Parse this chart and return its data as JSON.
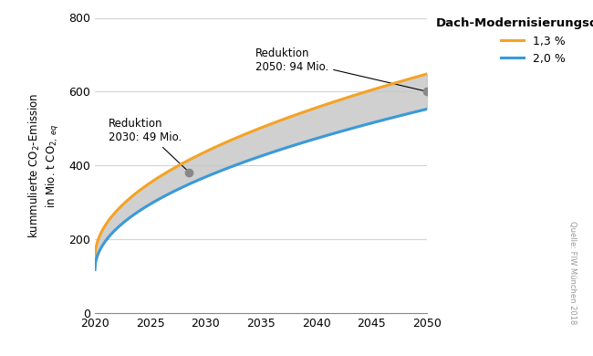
{
  "x_start": 2020,
  "x_end": 2050,
  "ylim": [
    0,
    800
  ],
  "yticks": [
    0,
    200,
    400,
    600,
    800
  ],
  "xticks": [
    2020,
    2025,
    2030,
    2035,
    2040,
    2045,
    2050
  ],
  "line_13_color": "#F5A323",
  "line_20_color": "#3A9AD9",
  "fill_color": "#C8C8C8",
  "dot_color": "#888888",
  "legend_title": "Dach-Modernisierungsquote",
  "legend_entries": [
    "1,3 %",
    "2,0 %"
  ],
  "annotation_2030_text": "Reduktion\n2030: 49 Mio.",
  "annotation_2050_text": "Reduktion\n2050: 94 Mio.",
  "source_text": "Quelle: FIW München 2018",
  "y_13_2020": 150,
  "y_13_2050": 648,
  "y_20_2020": 118,
  "y_20_2050": 553,
  "dot_x_2030": 2028.5,
  "dot_x_2050": 2050
}
